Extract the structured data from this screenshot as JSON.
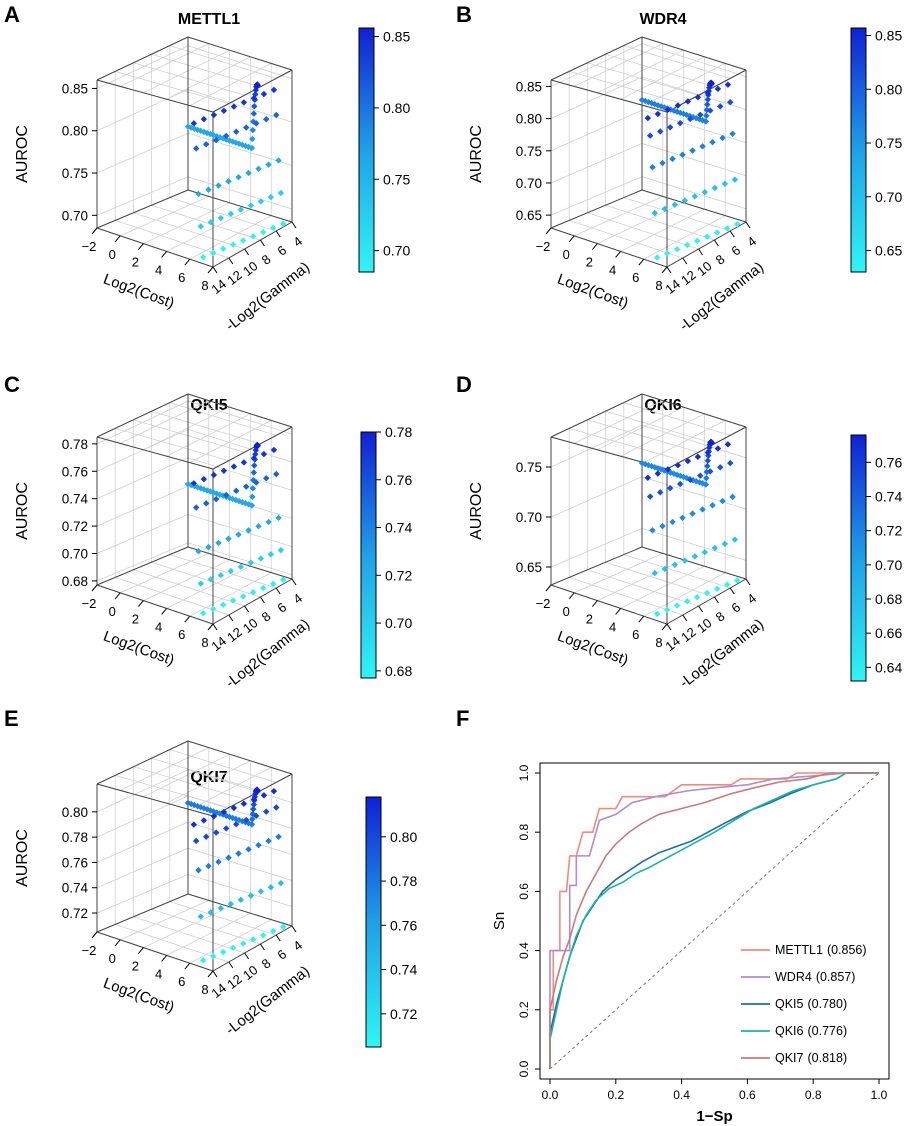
{
  "figure": {
    "type": "multi-panel scientific figure"
  },
  "chart_data": [
    {
      "panel": "A",
      "title": "METTL1",
      "type": "scatter",
      "zlabel": "AUROC",
      "xlabel": "Log2(Cost)",
      "ylabel": "-Log2(Gamma)",
      "x_ticks": [
        "−2",
        "0",
        "2",
        "4",
        "6",
        "8"
      ],
      "y_ticks": [
        "14",
        "12",
        "10",
        "8",
        "6",
        "4"
      ],
      "z_ticks": [
        "0.70",
        "0.75",
        "0.80",
        "0.85"
      ],
      "z_tick_values": [
        0.7,
        0.75,
        0.8,
        0.85
      ],
      "zlim": [
        0.685,
        0.86
      ],
      "colorbar_ticks": [
        "0.70",
        "0.75",
        "0.80",
        "0.85"
      ],
      "colorbar_tick_values": [
        0.7,
        0.75,
        0.8,
        0.85
      ],
      "colorbar_range": [
        0.685,
        0.856
      ],
      "max_auroc": 0.856,
      "plateau_auroc": 0.76
    },
    {
      "panel": "B",
      "title": "WDR4",
      "type": "scatter",
      "zlabel": "AUROC",
      "xlabel": "Log2(Cost)",
      "ylabel": "-Log2(Gamma)",
      "x_ticks": [
        "−2",
        "0",
        "2",
        "4",
        "6",
        "8"
      ],
      "y_ticks": [
        "14",
        "12",
        "10",
        "8",
        "6",
        "4"
      ],
      "z_ticks": [
        "0.65",
        "0.70",
        "0.75",
        "0.80",
        "0.85"
      ],
      "z_tick_values": [
        0.65,
        0.7,
        0.75,
        0.8,
        0.85
      ],
      "zlim": [
        0.63,
        0.86
      ],
      "colorbar_ticks": [
        "0.65",
        "0.70",
        "0.75",
        "0.80",
        "0.85"
      ],
      "colorbar_tick_values": [
        0.65,
        0.7,
        0.75,
        0.8,
        0.85
      ],
      "colorbar_range": [
        0.63,
        0.857
      ],
      "max_auroc": 0.857,
      "plateau_auroc": 0.77
    },
    {
      "panel": "C",
      "title": "QKI5",
      "type": "scatter",
      "zlabel": "AUROC",
      "xlabel": "Log2(Cost)",
      "ylabel": "-Log2(Gamma)",
      "x_ticks": [
        "−2",
        "0",
        "2",
        "4",
        "6",
        "8"
      ],
      "y_ticks": [
        "14",
        "12",
        "10",
        "8",
        "6",
        "4"
      ],
      "z_ticks": [
        "0.68",
        "0.70",
        "0.72",
        "0.74",
        "0.76",
        "0.78"
      ],
      "z_tick_values": [
        0.68,
        0.7,
        0.72,
        0.74,
        0.76,
        0.78
      ],
      "zlim": [
        0.677,
        0.785
      ],
      "colorbar_ticks": [
        "0.68",
        "0.70",
        "0.72",
        "0.74",
        "0.76",
        "0.78"
      ],
      "colorbar_tick_values": [
        0.68,
        0.7,
        0.72,
        0.74,
        0.76,
        0.78
      ],
      "colorbar_range": [
        0.677,
        0.78
      ],
      "max_auroc": 0.78,
      "plateau_auroc": 0.723
    },
    {
      "panel": "D",
      "title": "QKI6",
      "type": "scatter",
      "zlabel": "AUROC",
      "xlabel": "Log2(Cost)",
      "ylabel": "-Log2(Gamma)",
      "x_ticks": [
        "−2",
        "0",
        "2",
        "4",
        "6",
        "8"
      ],
      "y_ticks": [
        "14",
        "12",
        "10",
        "8",
        "6",
        "4"
      ],
      "z_ticks": [
        "0.65",
        "0.70",
        "0.75"
      ],
      "z_tick_values": [
        0.65,
        0.7,
        0.75
      ],
      "zlim": [
        0.632,
        0.78
      ],
      "colorbar_ticks": [
        "0.64",
        "0.66",
        "0.68",
        "0.70",
        "0.72",
        "0.74",
        "0.76"
      ],
      "colorbar_tick_values": [
        0.64,
        0.66,
        0.68,
        0.7,
        0.72,
        0.74,
        0.76
      ],
      "colorbar_range": [
        0.632,
        0.776
      ],
      "max_auroc": 0.776,
      "plateau_auroc": 0.716
    },
    {
      "panel": "E",
      "title": "QKI7",
      "type": "scatter",
      "zlabel": "AUROC",
      "xlabel": "Log2(Cost)",
      "ylabel": "-Log2(Gamma)",
      "x_ticks": [
        "−2",
        "0",
        "2",
        "4",
        "6",
        "8"
      ],
      "y_ticks": [
        "14",
        "12",
        "10",
        "8",
        "6",
        "4"
      ],
      "z_ticks": [
        "0.72",
        "0.74",
        "0.76",
        "0.78",
        "0.80"
      ],
      "z_tick_values": [
        0.72,
        0.74,
        0.76,
        0.78,
        0.8
      ],
      "zlim": [
        0.705,
        0.822
      ],
      "colorbar_ticks": [
        "0.72",
        "0.74",
        "0.76",
        "0.78",
        "0.80"
      ],
      "colorbar_tick_values": [
        0.72,
        0.74,
        0.76,
        0.78,
        0.8
      ],
      "colorbar_range": [
        0.705,
        0.818
      ],
      "max_auroc": 0.818,
      "plateau_auroc": 0.777
    },
    {
      "panel": "F",
      "type": "line",
      "title": "",
      "xlabel": "1−Sp",
      "ylabel": "Sn",
      "xlim": [
        0,
        1
      ],
      "ylim": [
        0,
        1
      ],
      "x_ticks": [
        "0.0",
        "0.2",
        "0.4",
        "0.6",
        "0.8",
        "1.0"
      ],
      "y_ticks": [
        "0.0",
        "0.2",
        "0.4",
        "0.6",
        "0.8",
        "1.0"
      ],
      "diagonal": true,
      "series": [
        {
          "name": "METTL1",
          "auc": "(0.856)",
          "color": "#F08C78",
          "points": [
            [
              0,
              0
            ],
            [
              0,
              0.2
            ],
            [
              0.01,
              0.2
            ],
            [
              0.01,
              0.4
            ],
            [
              0.03,
              0.4
            ],
            [
              0.03,
              0.6
            ],
            [
              0.05,
              0.6
            ],
            [
              0.06,
              0.72
            ],
            [
              0.08,
              0.72
            ],
            [
              0.1,
              0.8
            ],
            [
              0.13,
              0.8
            ],
            [
              0.15,
              0.88
            ],
            [
              0.2,
              0.88
            ],
            [
              0.22,
              0.92
            ],
            [
              0.35,
              0.92
            ],
            [
              0.4,
              0.96
            ],
            [
              0.55,
              0.96
            ],
            [
              0.58,
              0.98
            ],
            [
              0.72,
              0.98
            ],
            [
              0.75,
              1.0
            ],
            [
              1,
              1
            ]
          ]
        },
        {
          "name": "WDR4",
          "auc": "(0.857)",
          "color": "#B08CD0",
          "points": [
            [
              0,
              0
            ],
            [
              0,
              0.4
            ],
            [
              0.06,
              0.4
            ],
            [
              0.06,
              0.62
            ],
            [
              0.08,
              0.62
            ],
            [
              0.08,
              0.72
            ],
            [
              0.12,
              0.72
            ],
            [
              0.15,
              0.84
            ],
            [
              0.2,
              0.86
            ],
            [
              0.25,
              0.9
            ],
            [
              0.32,
              0.92
            ],
            [
              0.42,
              0.94
            ],
            [
              0.5,
              0.95
            ],
            [
              0.6,
              0.96
            ],
            [
              0.68,
              0.98
            ],
            [
              0.8,
              0.99
            ],
            [
              0.9,
              1.0
            ],
            [
              1,
              1
            ]
          ]
        },
        {
          "name": "QKI5",
          "auc": "(0.780)",
          "color": "#1F6BA6",
          "points": [
            [
              0,
              0
            ],
            [
              0,
              0.12
            ],
            [
              0.02,
              0.22
            ],
            [
              0.04,
              0.3
            ],
            [
              0.06,
              0.38
            ],
            [
              0.08,
              0.44
            ],
            [
              0.1,
              0.5
            ],
            [
              0.13,
              0.55
            ],
            [
              0.16,
              0.6
            ],
            [
              0.2,
              0.64
            ],
            [
              0.24,
              0.67
            ],
            [
              0.28,
              0.7
            ],
            [
              0.33,
              0.73
            ],
            [
              0.38,
              0.75
            ],
            [
              0.43,
              0.77
            ],
            [
              0.48,
              0.8
            ],
            [
              0.53,
              0.83
            ],
            [
              0.6,
              0.87
            ],
            [
              0.67,
              0.9
            ],
            [
              0.73,
              0.93
            ],
            [
              0.8,
              0.96
            ],
            [
              0.87,
              0.98
            ],
            [
              0.9,
              1.0
            ],
            [
              1,
              1
            ]
          ]
        },
        {
          "name": "QKI6",
          "auc": "(0.776)",
          "color": "#19B4A8",
          "points": [
            [
              0,
              0
            ],
            [
              0,
              0.1
            ],
            [
              0.02,
              0.2
            ],
            [
              0.04,
              0.3
            ],
            [
              0.06,
              0.38
            ],
            [
              0.08,
              0.45
            ],
            [
              0.11,
              0.52
            ],
            [
              0.14,
              0.57
            ],
            [
              0.18,
              0.61
            ],
            [
              0.22,
              0.63
            ],
            [
              0.26,
              0.66
            ],
            [
              0.3,
              0.68
            ],
            [
              0.35,
              0.71
            ],
            [
              0.4,
              0.74
            ],
            [
              0.45,
              0.77
            ],
            [
              0.5,
              0.8
            ],
            [
              0.56,
              0.84
            ],
            [
              0.62,
              0.88
            ],
            [
              0.68,
              0.91
            ],
            [
              0.74,
              0.94
            ],
            [
              0.8,
              0.96
            ],
            [
              0.87,
              0.98
            ],
            [
              0.9,
              1.0
            ],
            [
              1,
              1
            ]
          ]
        },
        {
          "name": "QKI7",
          "auc": "(0.818)",
          "color": "#C87C78",
          "points": [
            [
              0,
              0
            ],
            [
              0,
              0.2
            ],
            [
              0.02,
              0.3
            ],
            [
              0.04,
              0.38
            ],
            [
              0.06,
              0.44
            ],
            [
              0.08,
              0.52
            ],
            [
              0.11,
              0.6
            ],
            [
              0.14,
              0.66
            ],
            [
              0.17,
              0.72
            ],
            [
              0.2,
              0.76
            ],
            [
              0.24,
              0.8
            ],
            [
              0.28,
              0.83
            ],
            [
              0.33,
              0.86
            ],
            [
              0.4,
              0.88
            ],
            [
              0.47,
              0.9
            ],
            [
              0.55,
              0.93
            ],
            [
              0.62,
              0.95
            ],
            [
              0.7,
              0.97
            ],
            [
              0.78,
              0.98
            ],
            [
              0.85,
              1.0
            ],
            [
              1,
              1
            ]
          ]
        }
      ]
    }
  ]
}
